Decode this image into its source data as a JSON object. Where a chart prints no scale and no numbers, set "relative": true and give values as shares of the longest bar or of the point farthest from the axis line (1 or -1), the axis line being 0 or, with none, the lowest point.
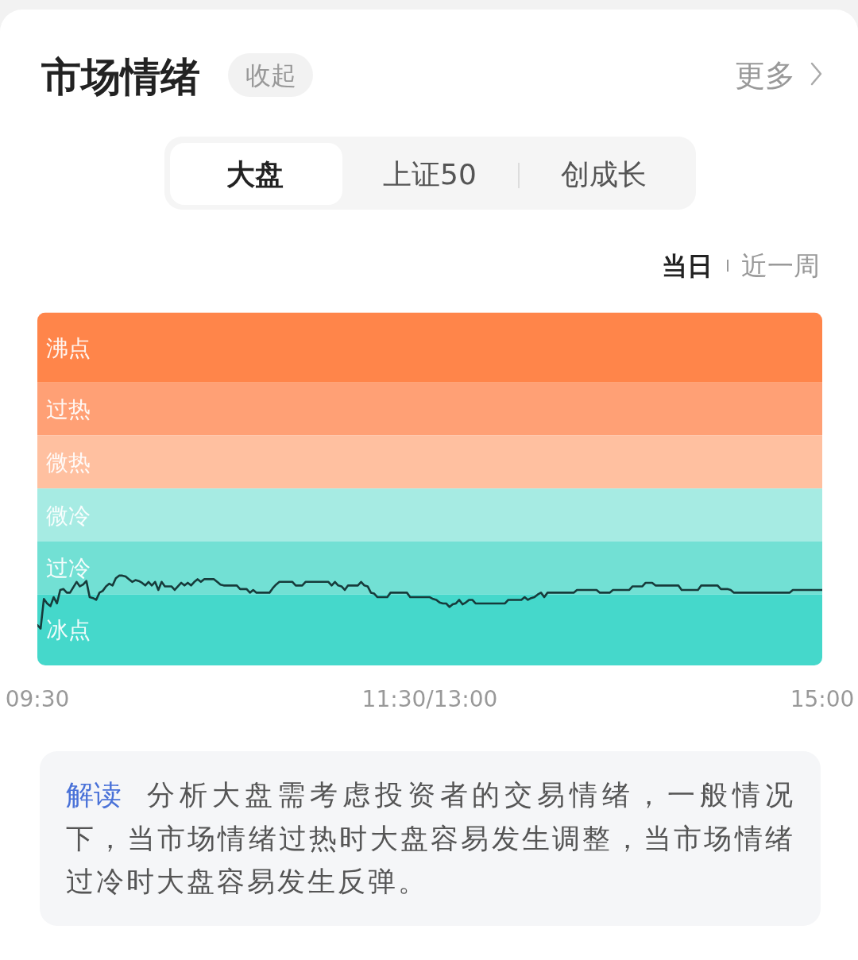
{
  "chart_data": {
    "type": "line",
    "title": "市场情绪",
    "annotations": [
      "收起",
      "更多",
      "大盘",
      "上证50",
      "创成长",
      "当日",
      "近一周",
      "解读",
      "分析大盘需考虑投资者的交易情绪，一般情况下，当市场情绪过热时大盘容易发生调整，当市场情绪过冷时大盘容易发生反弹。"
    ],
    "relative": true,
    "color": "#173b3b",
    "tick_labels": "x",
    "categories": [
      "09:30",
      null,
      null,
      null,
      null,
      null,
      null,
      null,
      null,
      null,
      null,
      null,
      null,
      null,
      null,
      null,
      null,
      null,
      null,
      null,
      null,
      null,
      null,
      null,
      null,
      null,
      null,
      null,
      null,
      null,
      null,
      null,
      null,
      null,
      null,
      null,
      null,
      null,
      null,
      null,
      null,
      null,
      null,
      null,
      null,
      null,
      null,
      null,
      null,
      null,
      null,
      null,
      null,
      null,
      null,
      null,
      null,
      null,
      null,
      null,
      null,
      null,
      null,
      null,
      null,
      null,
      null,
      null,
      null,
      null,
      null,
      null,
      null,
      null,
      null,
      null,
      null,
      null,
      null,
      null,
      null,
      null,
      null,
      null,
      null,
      null,
      null,
      null,
      null,
      null,
      null,
      null,
      null,
      null,
      null,
      null,
      null,
      null,
      null,
      null,
      null,
      null,
      null,
      null,
      null,
      null,
      null,
      null,
      null,
      null,
      null,
      null,
      null,
      null,
      null,
      null,
      null,
      null,
      null,
      null,
      "11:30/13:00",
      null,
      null,
      null,
      null,
      null,
      null,
      null,
      null,
      null,
      null,
      null,
      null,
      null,
      null,
      null,
      null,
      null,
      null,
      null,
      null,
      null,
      null,
      null,
      null,
      null,
      null,
      null,
      null,
      null,
      null,
      null,
      null,
      null,
      null,
      null,
      null,
      null,
      null,
      null,
      null,
      null,
      null,
      null,
      null,
      null,
      null,
      null,
      null,
      null,
      null,
      null,
      null,
      null,
      null,
      null,
      null,
      null,
      null,
      null,
      null,
      null,
      null,
      null,
      null,
      null,
      null,
      null,
      null,
      null,
      null,
      null,
      null,
      null,
      null,
      null,
      null,
      null,
      null,
      null,
      null,
      null,
      null,
      null,
      null,
      null,
      null,
      null,
      null,
      null,
      null,
      null,
      null,
      null,
      null,
      null,
      null,
      null,
      null,
      null,
      null,
      null,
      null,
      null,
      null,
      null,
      null,
      null,
      null,
      null,
      null,
      null,
      null,
      null,
      null,
      null,
      null,
      null,
      null,
      null,
      "15:00"
    ],
    "values": [
      0.45,
      0.41,
      0.74,
      0.69,
      0.66,
      0.76,
      0.69,
      0.84,
      0.85,
      0.81,
      0.81,
      0.87,
      0.93,
      0.88,
      0.9,
      0.94,
      0.76,
      0.75,
      0.73,
      0.81,
      0.83,
      0.88,
      0.91,
      0.89,
      0.97,
      1,
      1,
      0.99,
      0.96,
      0.93,
      0.95,
      0.94,
      0.92,
      0.89,
      0.93,
      0.89,
      0.93,
      0.84,
      0.93,
      0.88,
      0.88,
      0.88,
      0.84,
      0.88,
      0.92,
      0.89,
      0.92,
      0.89,
      0.93,
      0.96,
      0.93,
      0.96,
      0.96,
      0.96,
      0.96,
      0.93,
      0.9,
      0.89,
      0.89,
      0.89,
      0.89,
      0.89,
      0.85,
      0.85,
      0.85,
      0.81,
      0.84,
      0.81,
      0.81,
      0.81,
      0.81,
      0.81,
      0.86,
      0.9,
      0.93,
      0.93,
      0.93,
      0.93,
      0.93,
      0.89,
      0.89,
      0.89,
      0.93,
      0.93,
      0.93,
      0.93,
      0.93,
      0.93,
      0.93,
      0.93,
      0.89,
      0.93,
      0.89,
      0.88,
      0.84,
      0.89,
      0.89,
      0.89,
      0.89,
      0.93,
      0.89,
      0.88,
      0.81,
      0.8,
      0.76,
      0.76,
      0.76,
      0.76,
      0.81,
      0.81,
      0.81,
      0.81,
      0.81,
      0.81,
      0.76,
      0.76,
      0.76,
      0.76,
      0.76,
      0.76,
      0.76,
      0.74,
      0.73,
      0.7,
      0.69,
      0.69,
      0.65,
      0.68,
      0.69,
      0.73,
      0.68,
      0.7,
      0.73,
      0.73,
      0.69,
      0.69,
      0.69,
      0.69,
      0.69,
      0.69,
      0.69,
      0.69,
      0.69,
      0.69,
      0.73,
      0.73,
      0.73,
      0.73,
      0.73,
      0.76,
      0.73,
      0.75,
      0.76,
      0.79,
      0.81,
      0.76,
      0.81,
      0.81,
      0.81,
      0.81,
      0.81,
      0.81,
      0.81,
      0.81,
      0.81,
      0.84,
      0.84,
      0.84,
      0.84,
      0.84,
      0.84,
      0.84,
      0.81,
      0.81,
      0.81,
      0.81,
      0.84,
      0.84,
      0.84,
      0.84,
      0.84,
      0.84,
      0.88,
      0.88,
      0.88,
      0.88,
      0.92,
      0.92,
      0.92,
      0.89,
      0.89,
      0.89,
      0.89,
      0.89,
      0.89,
      0.89,
      0.89,
      0.84,
      0.84,
      0.84,
      0.84,
      0.84,
      0.84,
      0.89,
      0.89,
      0.89,
      0.89,
      0.89,
      0.89,
      0.85,
      0.85,
      0.85,
      0.84,
      0.81,
      0.81,
      0.81,
      0.81,
      0.81,
      0.81,
      0.81,
      0.81,
      0.81,
      0.81,
      0.81,
      0.81,
      0.81,
      0.81,
      0.81,
      0.81,
      0.81,
      0.81,
      0.84,
      0.84,
      0.84,
      0.84,
      0.84,
      0.84,
      0.84,
      0.84,
      0.84,
      0.84
    ],
    "bands": [
      {
        "axis": "y",
        "from": 3.15,
        "to": 3.93,
        "label": "沸点",
        "color": "#ff854a"
      },
      {
        "axis": "y",
        "from": 2.56,
        "to": 3.15,
        "label": "过热",
        "color": "#ffa075"
      },
      {
        "axis": "y",
        "from": 1.97,
        "to": 2.56,
        "label": "微热",
        "color": "#ffc0a0"
      },
      {
        "axis": "y",
        "from": 1.38,
        "to": 1.97,
        "label": "微冷",
        "color": "#a6ebe3"
      },
      {
        "axis": "y",
        "from": 0.79,
        "to": 1.38,
        "label": "过冷",
        "color": "#72e0d4"
      },
      {
        "axis": "y",
        "from": 0,
        "to": 0.79,
        "label": "冰点",
        "color": "#45d8cb"
      }
    ]
  }
}
